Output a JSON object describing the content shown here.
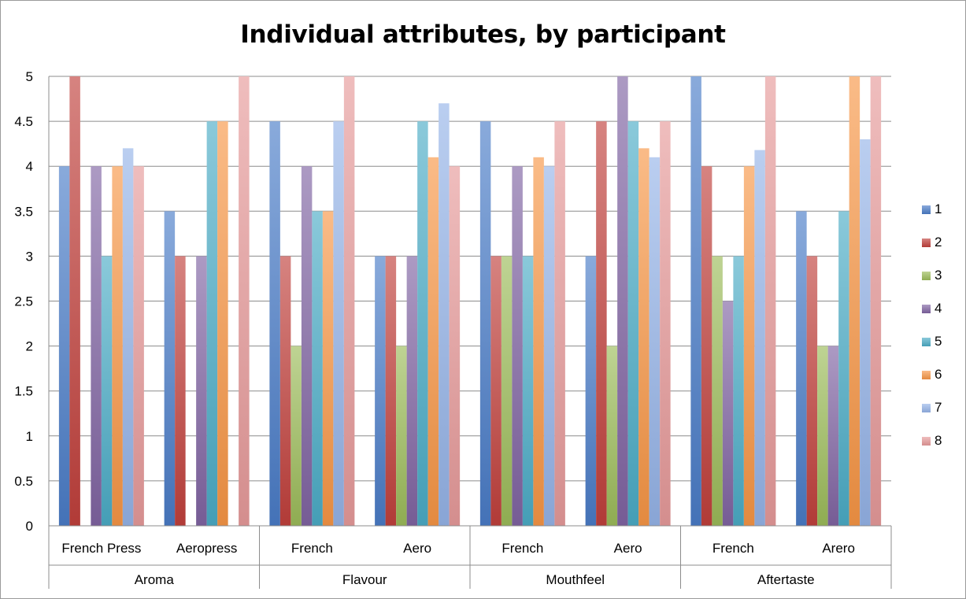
{
  "chart_data": {
    "type": "bar",
    "title": "Individual attributes, by participant",
    "xlabel": "",
    "ylabel": "",
    "ylim": [
      0,
      5
    ],
    "yticks": [
      "0",
      "0.5",
      "1",
      "1.5",
      "2",
      "2.5",
      "3",
      "3.5",
      "4",
      "4.5",
      "5"
    ],
    "grid": true,
    "legend_position": "right",
    "groups": [
      {
        "label": "Aroma",
        "categories": [
          "French Press",
          "Aeropress"
        ]
      },
      {
        "label": "Flavour",
        "categories": [
          "French",
          "Aero"
        ]
      },
      {
        "label": "Mouthfeel",
        "categories": [
          "French",
          "Aero"
        ]
      },
      {
        "label": "Aftertaste",
        "categories": [
          "French",
          "Arero"
        ]
      }
    ],
    "categories": [
      "French Press",
      "Aeropress",
      "French",
      "Aero",
      "French",
      "Aero",
      "French",
      "Arero"
    ],
    "series": [
      {
        "name": "1",
        "color": "#4a7cc7",
        "values": [
          4,
          3.5,
          4.5,
          3,
          4.5,
          3,
          5,
          3.5
        ]
      },
      {
        "name": "2",
        "color": "#c0403c",
        "values": [
          5,
          3,
          3,
          3,
          3,
          4.5,
          4,
          3
        ]
      },
      {
        "name": "3",
        "color": "#9bbb59",
        "values": [
          0,
          0,
          2,
          2,
          3,
          2,
          3,
          2
        ]
      },
      {
        "name": "4",
        "color": "#8064a2",
        "values": [
          4,
          3,
          4,
          3,
          4,
          5,
          2.5,
          2
        ]
      },
      {
        "name": "5",
        "color": "#4bacc6",
        "values": [
          3,
          4.5,
          3.5,
          4.5,
          3,
          4.5,
          3,
          3.5
        ]
      },
      {
        "name": "6",
        "color": "#f79646",
        "values": [
          4,
          4.5,
          3.5,
          4.1,
          4.1,
          4.2,
          4,
          5
        ]
      },
      {
        "name": "7",
        "color": "#95b3e8",
        "values": [
          4.2,
          0,
          4.5,
          4.7,
          4,
          4.1,
          4.18,
          4.3
        ]
      },
      {
        "name": "8",
        "color": "#e69a9a",
        "values": [
          4,
          5,
          5,
          4,
          4.5,
          4.5,
          5,
          5
        ]
      }
    ]
  }
}
